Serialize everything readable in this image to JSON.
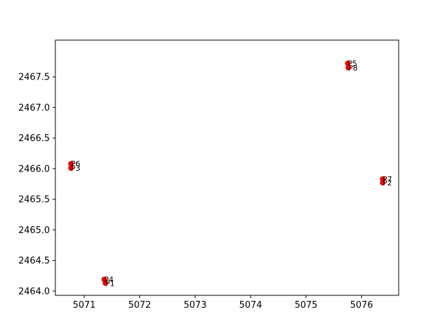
{
  "chart_data": {
    "type": "scatter",
    "title": "",
    "xlabel": "",
    "ylabel": "",
    "xlim": [
      5070.48,
      5076.67
    ],
    "ylim": [
      2463.93,
      2468.1
    ],
    "grid": false,
    "marker_color": "#ff0000",
    "x_ticks": [
      5071,
      5072,
      5073,
      5074,
      5075,
      5076
    ],
    "y_ticks": [
      2464.0,
      2464.5,
      2465.0,
      2465.5,
      2466.0,
      2466.5,
      2467.0,
      2467.5
    ],
    "x_tick_labels": [
      "5071",
      "5072",
      "5073",
      "5074",
      "5075",
      "5076"
    ],
    "y_tick_labels": [
      "2464.0",
      "2464.5",
      "2465.0",
      "2465.5",
      "2466.0",
      "2466.5",
      "2467.0",
      "2467.5"
    ],
    "points": [
      {
        "label": "P1",
        "x": 5071.38,
        "y": 2464.13
      },
      {
        "label": "P2",
        "x": 5076.38,
        "y": 2465.77
      },
      {
        "label": "P3",
        "x": 5070.76,
        "y": 2466.01
      },
      {
        "label": "P4",
        "x": 5071.36,
        "y": 2464.19
      },
      {
        "label": "P5",
        "x": 5075.75,
        "y": 2467.72
      },
      {
        "label": "P6",
        "x": 5070.76,
        "y": 2466.08
      },
      {
        "label": "P7",
        "x": 5076.38,
        "y": 2465.83
      },
      {
        "label": "P8",
        "x": 5075.76,
        "y": 2467.65
      }
    ]
  }
}
